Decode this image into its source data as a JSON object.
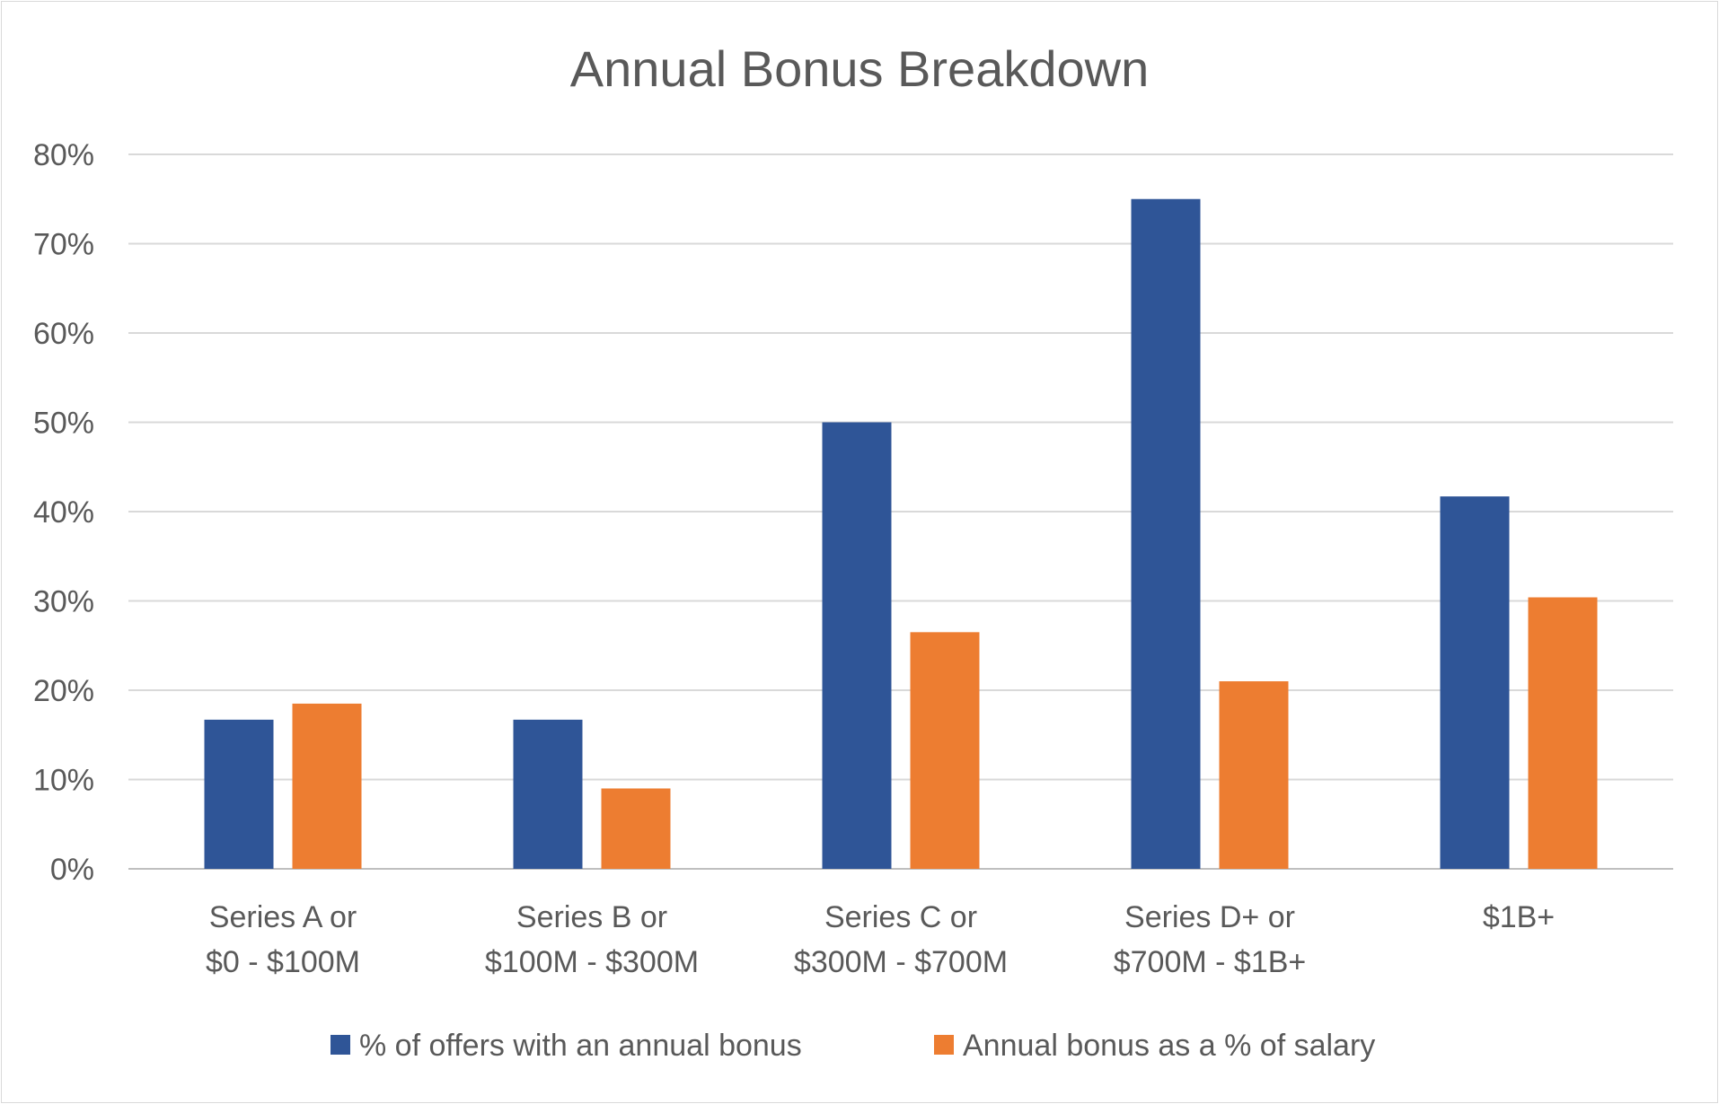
{
  "chart_data": {
    "type": "bar",
    "title": "Annual Bonus Breakdown",
    "xlabel": "",
    "ylabel": "",
    "ylim": [
      0,
      80
    ],
    "ytick_step": 10,
    "ytick_format": "percent",
    "grid": true,
    "legend_position": "bottom",
    "categories": [
      [
        "Series A or",
        "$0 - $100M"
      ],
      [
        "Series B or",
        "$100M - $300M"
      ],
      [
        "Series C or",
        "$300M - $700M"
      ],
      [
        "Series D+ or",
        "$700M - $1B+"
      ],
      [
        "$1B+"
      ]
    ],
    "series": [
      {
        "name": "% of offers with an annual bonus",
        "color": "#2F5597",
        "values": [
          16.7,
          16.7,
          50.0,
          75.0,
          41.7
        ]
      },
      {
        "name": "Annual bonus as a % of salary",
        "color": "#ED7D31",
        "values": [
          18.5,
          9.0,
          26.5,
          21.0,
          30.4
        ]
      }
    ]
  }
}
